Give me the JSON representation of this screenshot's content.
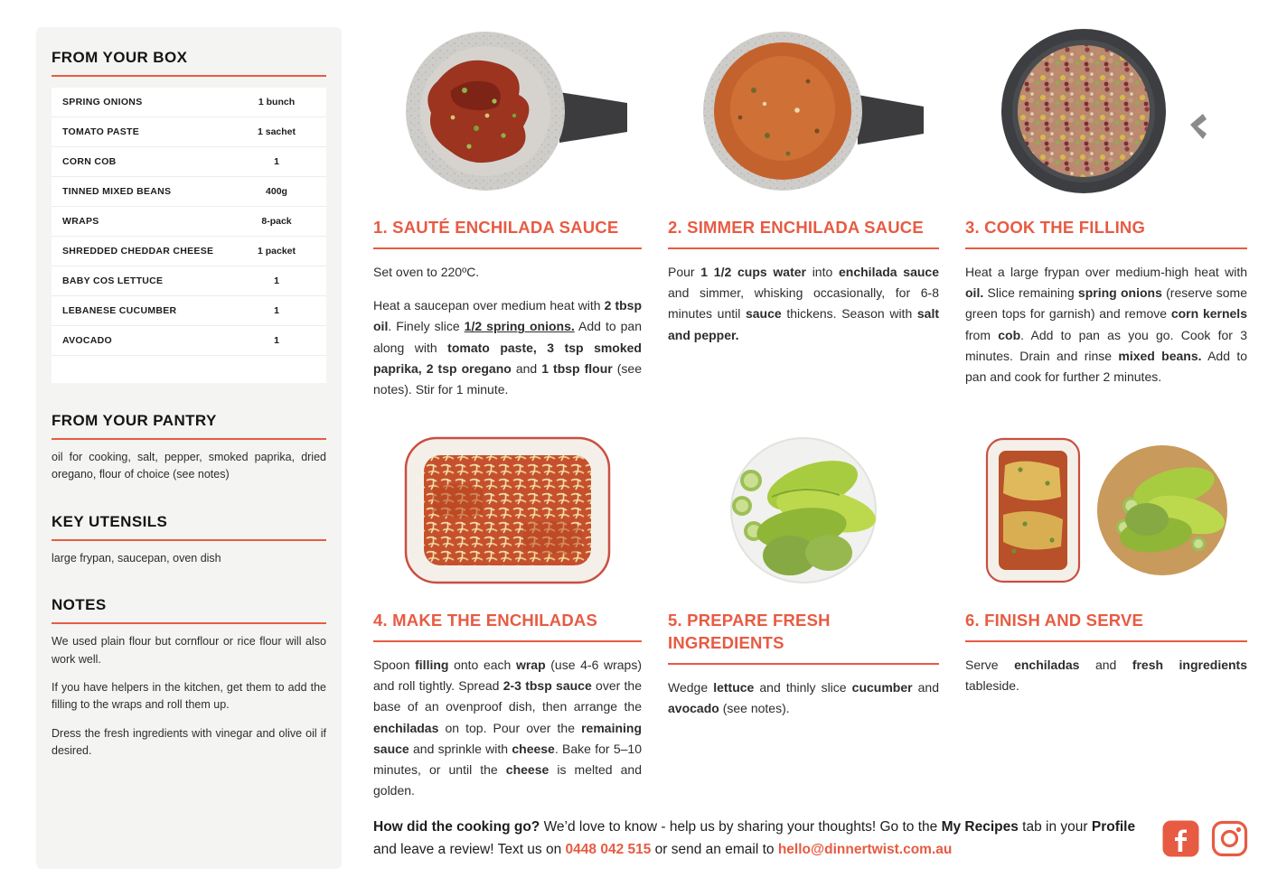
{
  "accent_color": "#E75B43",
  "sidebar": {
    "box": {
      "title": "FROM YOUR BOX",
      "items": [
        {
          "name": "SPRING ONIONS",
          "qty": "1 bunch"
        },
        {
          "name": "TOMATO PASTE",
          "qty": "1 sachet"
        },
        {
          "name": "CORN COB",
          "qty": "1"
        },
        {
          "name": "TINNED MIXED BEANS",
          "qty": "400g"
        },
        {
          "name": "WRAPS",
          "qty": "8-pack"
        },
        {
          "name": "SHREDDED CHEDDAR CHEESE",
          "qty": "1 packet"
        },
        {
          "name": "BABY COS LETTUCE",
          "qty": "1"
        },
        {
          "name": "LEBANESE CUCUMBER",
          "qty": "1"
        },
        {
          "name": "AVOCADO",
          "qty": "1"
        }
      ]
    },
    "pantry": {
      "title": "FROM YOUR PANTRY",
      "text": "oil for cooking, salt, pepper, smoked paprika, dried oregano, flour of choice (see notes)"
    },
    "utensils": {
      "title": "KEY UTENSILS",
      "text": "large frypan, saucepan, oven dish"
    },
    "notes": {
      "title": "NOTES",
      "paragraphs": [
        "We used plain flour but cornflour or rice flour will also work well.",
        "If you have helpers in the kitchen, get them to add the filling to the wraps and roll them up.",
        "Dress the fresh ingredients with vinegar and olive oil if desired."
      ]
    }
  },
  "steps": [
    {
      "title": "1. SAUTÉ ENCHILADA SAUCE",
      "photo": "saucepan-with-tomato-paste",
      "paragraphs": [
        [
          {
            "t": "Set oven to 220ºC."
          }
        ],
        [
          {
            "t": "Heat a saucepan over medium heat with "
          },
          {
            "t": "2 tbsp oil",
            "b": true
          },
          {
            "t": ". Finely slice "
          },
          {
            "t": "1/2 spring onions.",
            "b": true,
            "u": true
          },
          {
            "t": " Add to pan along with "
          },
          {
            "t": "tomato paste, 3 tsp smoked paprika, 2 tsp oregano",
            "b": true
          },
          {
            "t": " and "
          },
          {
            "t": "1 tbsp flour",
            "b": true
          },
          {
            "t": " (see notes). Stir for 1 minute."
          }
        ]
      ]
    },
    {
      "title": "2. SIMMER ENCHILADA SAUCE",
      "photo": "pot-of-simmering-enchilada-sauce",
      "paragraphs": [
        [
          {
            "t": "Pour "
          },
          {
            "t": "1 1/2 cups water",
            "b": true
          },
          {
            "t": " into "
          },
          {
            "t": "enchilada sauce",
            "b": true
          },
          {
            "t": " and simmer, whisking occasionally, for 6-8 minutes until "
          },
          {
            "t": "sauce",
            "b": true
          },
          {
            "t": " thickens. Season with "
          },
          {
            "t": "salt and pepper.",
            "b": true
          }
        ]
      ]
    },
    {
      "title": "3. COOK THE FILLING",
      "photo": "frypan-with-beans-and-corn",
      "paragraphs": [
        [
          {
            "t": "Heat a large frypan over medium-high heat with "
          },
          {
            "t": "oil.",
            "b": true
          },
          {
            "t": " Slice remaining "
          },
          {
            "t": "spring onions",
            "b": true
          },
          {
            "t": " (reserve some green tops for garnish) and remove "
          },
          {
            "t": "corn kernels",
            "b": true
          },
          {
            "t": " from "
          },
          {
            "t": "cob",
            "b": true
          },
          {
            "t": ". Add to pan as you go. Cook for 3 minutes. Drain and rinse "
          },
          {
            "t": "mixed beans.",
            "b": true
          },
          {
            "t": " Add to pan and cook for further 2 minutes."
          }
        ]
      ]
    },
    {
      "title": "4. MAKE THE ENCHILADAS",
      "photo": "baking-dish-with-cheese-topped-enchiladas",
      "paragraphs": [
        [
          {
            "t": "Spoon "
          },
          {
            "t": "filling",
            "b": true
          },
          {
            "t": " onto each "
          },
          {
            "t": "wrap",
            "b": true
          },
          {
            "t": " (use 4-6 wraps) and roll tightly. Spread "
          },
          {
            "t": "2-3 tbsp sauce",
            "b": true
          },
          {
            "t": " over the base of an ovenproof dish, then arrange the "
          },
          {
            "t": "enchiladas",
            "b": true
          },
          {
            "t": " on top. Pour over the "
          },
          {
            "t": "remaining sauce",
            "b": true
          },
          {
            "t": " and sprinkle with "
          },
          {
            "t": "cheese",
            "b": true
          },
          {
            "t": ". Bake for 5–10 minutes, or until the "
          },
          {
            "t": "cheese",
            "b": true
          },
          {
            "t": " is melted and golden."
          }
        ]
      ]
    },
    {
      "title": "5. PREPARE FRESH INGREDIENTS",
      "photo": "plate-of-lettuce-cucumber-avocado",
      "paragraphs": [
        [
          {
            "t": "Wedge "
          },
          {
            "t": "lettuce",
            "b": true
          },
          {
            "t": " and thinly slice "
          },
          {
            "t": "cucumber",
            "b": true
          },
          {
            "t": " and "
          },
          {
            "t": "avocado",
            "b": true
          },
          {
            "t": " (see notes)."
          }
        ]
      ]
    },
    {
      "title": "6. FINISH AND SERVE",
      "photo": "baked-enchiladas-and-salad-bowl",
      "paragraphs": [
        [
          {
            "t": "Serve "
          },
          {
            "t": "enchiladas",
            "b": true
          },
          {
            "t": " and "
          },
          {
            "t": "fresh ingredients",
            "b": true
          },
          {
            "t": " tableside."
          }
        ]
      ]
    }
  ],
  "footer": {
    "segments": [
      {
        "t": "How did the cooking go?",
        "b": true
      },
      {
        "t": " We’d love to know - help us by sharing your thoughts! Go to the "
      },
      {
        "t": "My Recipes",
        "b": true
      },
      {
        "t": " tab in your "
      },
      {
        "t": "Profile",
        "b": true
      },
      {
        "t": " and leave a review! Text us on "
      },
      {
        "t": "0448 042 515",
        "b": true,
        "c": "#E75B43",
        "n": "phone-link",
        "i": true
      },
      {
        "t": " or send an email to "
      },
      {
        "t": "hello@dinnertwist.com.au",
        "b": true,
        "c": "#E75B43",
        "n": "email-link",
        "i": true
      }
    ]
  }
}
